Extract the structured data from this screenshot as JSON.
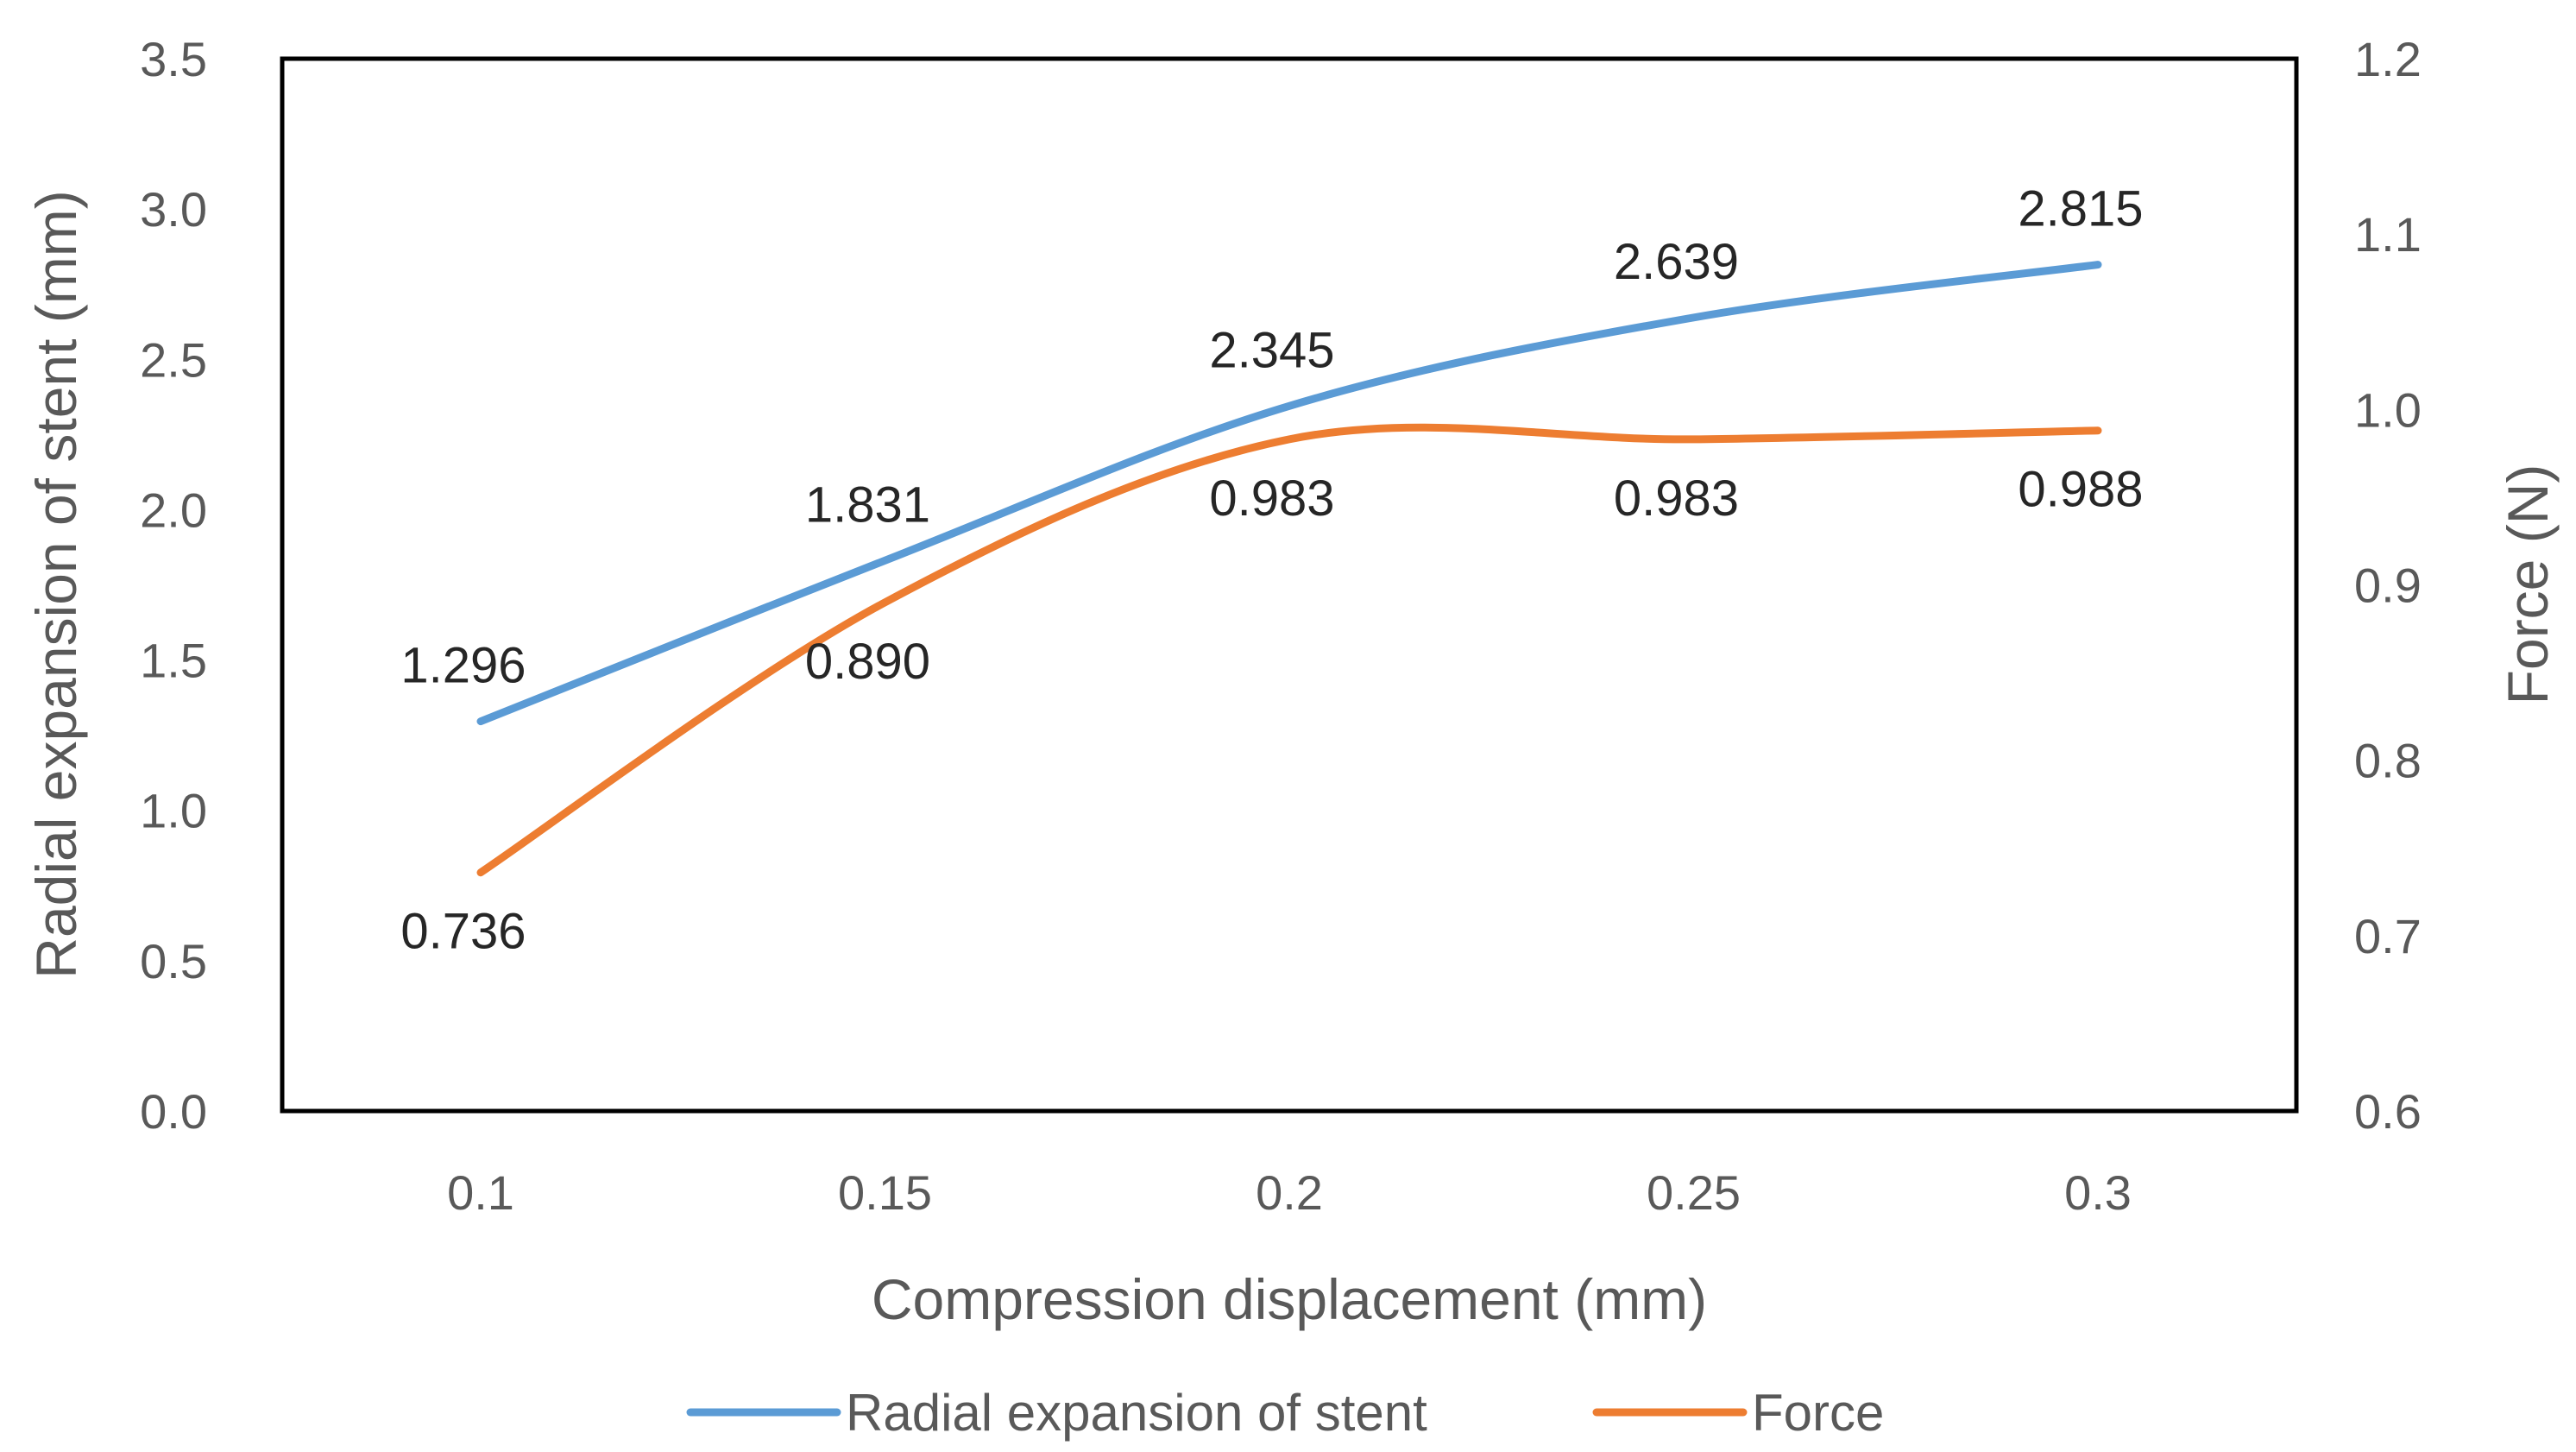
{
  "chart_data": {
    "type": "line",
    "title": "",
    "xlabel": "Compression displacement (mm)",
    "ylabel": "Radial expansion of stent (mm)",
    "y2label": "Force (N)",
    "x": [
      0.1,
      0.15,
      0.2,
      0.25,
      0.3
    ],
    "x_tick_labels": [
      "0.1",
      "0.15",
      "0.2",
      "0.25",
      "0.3"
    ],
    "ylim": [
      0,
      3.5
    ],
    "y_ticks": [
      0,
      0.5,
      1,
      1.5,
      2,
      2.5,
      3,
      3.5
    ],
    "y_tick_labels": [
      "0.0",
      "0.5",
      "1.0",
      "1.5",
      "2.0",
      "2.5",
      "3.0",
      "3.5"
    ],
    "y2lim": [
      0.6,
      1.2
    ],
    "y2_ticks": [
      0.6,
      0.7,
      0.8,
      0.9,
      1.0,
      1.1,
      1.2
    ],
    "y2_tick_labels": [
      "0.6",
      "0.7",
      "0.8",
      "0.9",
      "1.0",
      "1.1",
      "1.2"
    ],
    "grid": false,
    "legend_position": "bottom",
    "series": [
      {
        "name": "Radial expansion of stent",
        "axis": "left",
        "color": "#5B9BD5",
        "values": [
          1.296,
          1.831,
          2.345,
          2.639,
          2.815
        ],
        "labels": [
          "1.296",
          "1.831",
          "2.345",
          "2.639",
          "2.815"
        ],
        "label_position": "above"
      },
      {
        "name": "Force",
        "axis": "right",
        "color": "#ED7D31",
        "values": [
          0.736,
          0.89,
          0.983,
          0.983,
          0.988
        ],
        "labels": [
          "0.736",
          "0.890",
          "0.983",
          "0.983",
          "0.988"
        ],
        "label_position": "below"
      }
    ]
  }
}
